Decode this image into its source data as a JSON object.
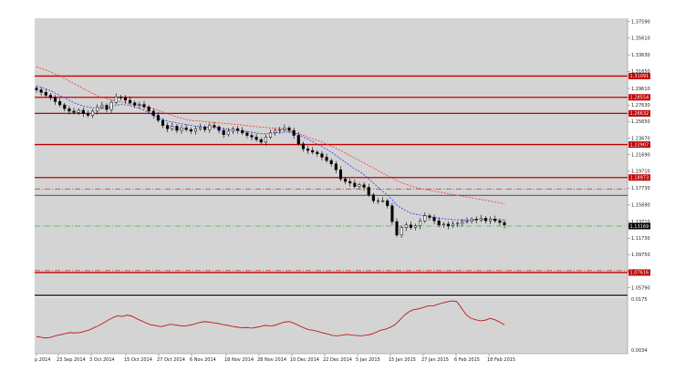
{
  "chart_data": [
    {
      "type": "candlestick",
      "panel": "price",
      "y_ticks": [
        "1.37590",
        "1.35610",
        "1.33630",
        "1.31650",
        "1.29610",
        "1.27630",
        "1.25650",
        "1.23670",
        "1.21690",
        "1.19710",
        "1.17730",
        "1.15690",
        "1.13710",
        "1.11730",
        "1.09750",
        "1.07770",
        "1.05790"
      ],
      "ylim": [
        1.05,
        1.38
      ],
      "x_labels": [
        "p 2014",
        "23 Sep 2014",
        "3 Oct 2014",
        "15 Oct 2014",
        "27 Oct 2014",
        "6 Nov 2014",
        "18 Nov 2014",
        "28 Nov 2014",
        "10 Dec 2014",
        "22 Dec 2014",
        "5 Jan 2015",
        "15 Jan 2015",
        "27 Jan 2015",
        "6 Feb 2015",
        "18 Feb 2015"
      ],
      "close": [
        1.2945,
        1.2915,
        1.288,
        1.285,
        1.2805,
        1.2765,
        1.272,
        1.269,
        1.2675,
        1.27,
        1.266,
        1.264,
        1.269,
        1.274,
        1.276,
        1.271,
        1.2795,
        1.286,
        1.285,
        1.282,
        1.279,
        1.276,
        1.277,
        1.274,
        1.269,
        1.264,
        1.258,
        1.252,
        1.248,
        1.251,
        1.246,
        1.249,
        1.247,
        1.245,
        1.248,
        1.25,
        1.247,
        1.252,
        1.25,
        1.246,
        1.241,
        1.245,
        1.248,
        1.246,
        1.243,
        1.24,
        1.238,
        1.235,
        1.232,
        1.238,
        1.243,
        1.246,
        1.247,
        1.249,
        1.246,
        1.24,
        1.23,
        1.224,
        1.222,
        1.22,
        1.218,
        1.214,
        1.21,
        1.206,
        1.199,
        1.188,
        1.185,
        1.183,
        1.179,
        1.181,
        1.178,
        1.169,
        1.162,
        1.162,
        1.162,
        1.156,
        1.137,
        1.121,
        1.13,
        1.133,
        1.13,
        1.132,
        1.138,
        1.144,
        1.142,
        1.138,
        1.133,
        1.134,
        1.132,
        1.134,
        1.135,
        1.137,
        1.138,
        1.14,
        1.139,
        1.141,
        1.138,
        1.14,
        1.138,
        1.136,
        1.133
      ],
      "ma_fast": [
        1.299,
        1.2975,
        1.2955,
        1.2935,
        1.2905,
        1.2875,
        1.285,
        1.282,
        1.279,
        1.277,
        1.275,
        1.274,
        1.273,
        1.2725,
        1.2722,
        1.2725,
        1.274,
        1.276,
        1.277,
        1.2765,
        1.2755,
        1.274,
        1.2725,
        1.27,
        1.267,
        1.264,
        1.261,
        1.259,
        1.257,
        1.256,
        1.255,
        1.254,
        1.253,
        1.252,
        1.251,
        1.2505,
        1.25,
        1.25,
        1.2495,
        1.249,
        1.248,
        1.247,
        1.2465,
        1.246,
        1.2455,
        1.2445,
        1.244,
        1.243,
        1.242,
        1.242,
        1.2425,
        1.243,
        1.2435,
        1.244,
        1.244,
        1.243,
        1.241,
        1.238,
        1.2355,
        1.2325,
        1.2295,
        1.2265,
        1.2235,
        1.22,
        1.216,
        1.212,
        1.208,
        1.204,
        1.2,
        1.197,
        1.193,
        1.188,
        1.183,
        1.178,
        1.173,
        1.169,
        1.163,
        1.157,
        1.153,
        1.15,
        1.147,
        1.146,
        1.145,
        1.144,
        1.143,
        1.142,
        1.141,
        1.1405,
        1.14,
        1.1395,
        1.1392,
        1.139,
        1.139,
        1.139,
        1.1392,
        1.1395,
        1.1398,
        1.14,
        1.1398,
        1.1395,
        1.139
      ],
      "ma_slow": [
        1.322,
        1.32,
        1.318,
        1.316,
        1.3135,
        1.311,
        1.308,
        1.305,
        1.302,
        1.299,
        1.296,
        1.293,
        1.29,
        1.2875,
        1.2855,
        1.284,
        1.2825,
        1.281,
        1.28,
        1.279,
        1.278,
        1.277,
        1.276,
        1.275,
        1.2735,
        1.272,
        1.27,
        1.268,
        1.266,
        1.264,
        1.262,
        1.2605,
        1.259,
        1.258,
        1.2575,
        1.257,
        1.2565,
        1.256,
        1.2555,
        1.255,
        1.2545,
        1.254,
        1.2535,
        1.253,
        1.2525,
        1.2518,
        1.251,
        1.2505,
        1.25,
        1.2495,
        1.249,
        1.2485,
        1.248,
        1.247,
        1.2455,
        1.244,
        1.242,
        1.24,
        1.238,
        1.236,
        1.234,
        1.232,
        1.2295,
        1.227,
        1.2245,
        1.222,
        1.219,
        1.216,
        1.213,
        1.21,
        1.207,
        1.204,
        1.201,
        1.198,
        1.195,
        1.192,
        1.189,
        1.186,
        1.1835,
        1.1815,
        1.1795,
        1.178,
        1.1765,
        1.1755,
        1.1745,
        1.1735,
        1.1725,
        1.1715,
        1.1705,
        1.1695,
        1.1685,
        1.1675,
        1.1665,
        1.1655,
        1.1645,
        1.1635,
        1.1625,
        1.1615,
        1.1605,
        1.1595,
        1.1585
      ],
      "levels": [
        {
          "label": "1.31091",
          "value": 1.3109,
          "color": "#c00000"
        },
        {
          "label": "1.28554",
          "value": 1.2855,
          "color": "#c00000"
        },
        {
          "label": "1.26632",
          "value": 1.2663,
          "color": "#c00000"
        },
        {
          "label": "1.22907",
          "value": 1.2291,
          "color": "#c00000"
        },
        {
          "label": "1.18973",
          "value": 1.1897,
          "color": "#c00000"
        },
        {
          "label": "1.07616",
          "value": 1.0762,
          "color": "#c00000"
        }
      ],
      "dashed_levels": [
        {
          "value": 1.176,
          "color": "#d04040"
        },
        {
          "value": 1.0785,
          "color": "#d04040"
        },
        {
          "value": 1.1317,
          "color": "#50b050"
        }
      ],
      "plain_levels": [
        {
          "value": 1.1685,
          "color": "#000000"
        }
      ],
      "current_price": {
        "label": "1.13169",
        "value": 1.1317,
        "color": "#000000"
      },
      "colors": {
        "bull": "#ffffff",
        "bear": "#000000",
        "ma_fast": "#2040ff",
        "ma_slow": "#ff3030",
        "plot_bg": "#d4d4d4"
      }
    },
    {
      "type": "line",
      "panel": "indicator",
      "y_ticks": [
        "0.0175",
        "0.0034"
      ],
      "ylim": [
        0.0025,
        0.018
      ],
      "values": [
        0.0072,
        0.007,
        0.0068,
        0.007,
        0.0074,
        0.0077,
        0.008,
        0.0083,
        0.0082,
        0.0083,
        0.0086,
        0.009,
        0.0096,
        0.0102,
        0.0109,
        0.0117,
        0.0124,
        0.0129,
        0.0127,
        0.0131,
        0.0128,
        0.0121,
        0.0115,
        0.0109,
        0.0104,
        0.0102,
        0.0099,
        0.0102,
        0.0106,
        0.0104,
        0.0102,
        0.0101,
        0.0103,
        0.0106,
        0.011,
        0.0113,
        0.0112,
        0.011,
        0.0108,
        0.0105,
        0.0103,
        0.01,
        0.0098,
        0.0096,
        0.0097,
        0.0095,
        0.0097,
        0.01,
        0.0103,
        0.0101,
        0.0103,
        0.0108,
        0.0112,
        0.0113,
        0.0108,
        0.0102,
        0.0096,
        0.0091,
        0.0089,
        0.0086,
        0.0082,
        0.0079,
        0.0075,
        0.0074,
        0.0076,
        0.0078,
        0.0076,
        0.0075,
        0.0074,
        0.0076,
        0.0078,
        0.0083,
        0.0089,
        0.0092,
        0.0097,
        0.0104,
        0.0116,
        0.013,
        0.014,
        0.0146,
        0.0148,
        0.0152,
        0.0156,
        0.0156,
        0.016,
        0.0164,
        0.0167,
        0.017,
        0.0168,
        0.015,
        0.0132,
        0.0122,
        0.0118,
        0.0115,
        0.0117,
        0.0122,
        0.0118,
        0.0112,
        0.0104
      ],
      "colors": {
        "line": "#c00000",
        "plot_bg": "#d4d4d4"
      }
    }
  ]
}
